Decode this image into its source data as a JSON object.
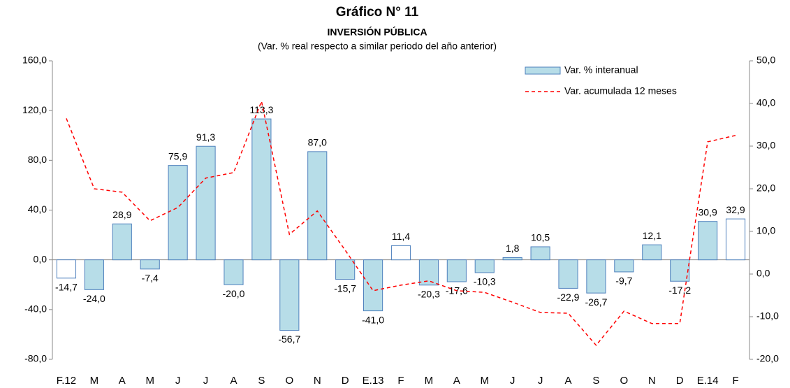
{
  "chart_data": {
    "type": "bar_line",
    "title": "Gráfico N° 11",
    "subtitle": "INVERSIÓN PÚBLICA",
    "note": "(Var. % real respecto a similar periodo del año anterior)",
    "categories": [
      "F.12",
      "M",
      "A",
      "M",
      "J",
      "J",
      "A",
      "S",
      "O",
      "N",
      "D",
      "E.13",
      "F",
      "M",
      "A",
      "M",
      "J",
      "J",
      "A",
      "S",
      "O",
      "N",
      "D",
      "E.14",
      "F"
    ],
    "series": [
      {
        "name": "Var. % interanual",
        "type": "bar",
        "axis": "y",
        "color": "#b7dde8",
        "edge_color": "#4f81bd",
        "point_colors": [
          "#ffffff",
          "#b7dde8",
          "#b7dde8",
          "#b7dde8",
          "#b7dde8",
          "#b7dde8",
          "#b7dde8",
          "#b7dde8",
          "#b7dde8",
          "#b7dde8",
          "#b7dde8",
          "#b7dde8",
          "#ffffff",
          "#b7dde8",
          "#b7dde8",
          "#b7dde8",
          "#b7dde8",
          "#b7dde8",
          "#b7dde8",
          "#b7dde8",
          "#b7dde8",
          "#b7dde8",
          "#b7dde8",
          "#b7dde8",
          "#ffffff"
        ],
        "values": [
          -14.7,
          -24.0,
          28.9,
          -7.4,
          75.9,
          91.3,
          -20.0,
          113.3,
          -56.7,
          87.0,
          -15.7,
          -41.0,
          11.4,
          -20.3,
          -17.6,
          -10.3,
          1.8,
          10.5,
          -22.9,
          -26.7,
          -9.7,
          12.1,
          -17.2,
          30.9,
          32.9
        ],
        "value_labels": [
          "-14,7",
          "-24,0",
          "28,9",
          "-7,4",
          "75,9",
          "91,3",
          "-20,0",
          "113,3",
          "-56,7",
          "87,0",
          "-15,7",
          "-41,0",
          "11,4",
          "-20,3",
          "-17,6",
          "-10,3",
          "1,8",
          "10,5",
          "-22,9",
          "-26,7",
          "-9,7",
          "12,1",
          "-17,2",
          "30,9",
          "32,9"
        ]
      },
      {
        "name": "Var. acumulada 12 meses",
        "type": "line",
        "axis": "y2",
        "color": "#ff0000",
        "dashed": true,
        "values": [
          36.5,
          20.0,
          19.2,
          12.5,
          15.6,
          22.5,
          23.8,
          40.5,
          9.3,
          14.8,
          5.6,
          -3.9,
          -2.6,
          -1.6,
          -3.9,
          -4.3,
          -6.6,
          -9.0,
          -9.2,
          -16.7,
          -8.7,
          -11.6,
          -11.6,
          31.0,
          32.5
        ]
      }
    ],
    "ylim": [
      -80,
      160
    ],
    "yticks": [
      {
        "value": -80,
        "label": "-80,0"
      },
      {
        "value": -40,
        "label": "-40,0"
      },
      {
        "value": 0,
        "label": "0,0"
      },
      {
        "value": 40,
        "label": "40,0"
      },
      {
        "value": 80,
        "label": "80,0"
      },
      {
        "value": 120,
        "label": "120,0"
      },
      {
        "value": 160,
        "label": "160,0"
      }
    ],
    "y2lim": [
      -20,
      50
    ],
    "y2ticks": [
      {
        "value": -20,
        "label": "-20,0"
      },
      {
        "value": -10,
        "label": "-10,0"
      },
      {
        "value": 0,
        "label": "0,0"
      },
      {
        "value": 10,
        "label": "10,0"
      },
      {
        "value": 20,
        "label": "20,0"
      },
      {
        "value": 30,
        "label": "30,0"
      },
      {
        "value": 40,
        "label": "40,0"
      },
      {
        "value": 50,
        "label": "50,0"
      }
    ],
    "legend": "upper right"
  }
}
